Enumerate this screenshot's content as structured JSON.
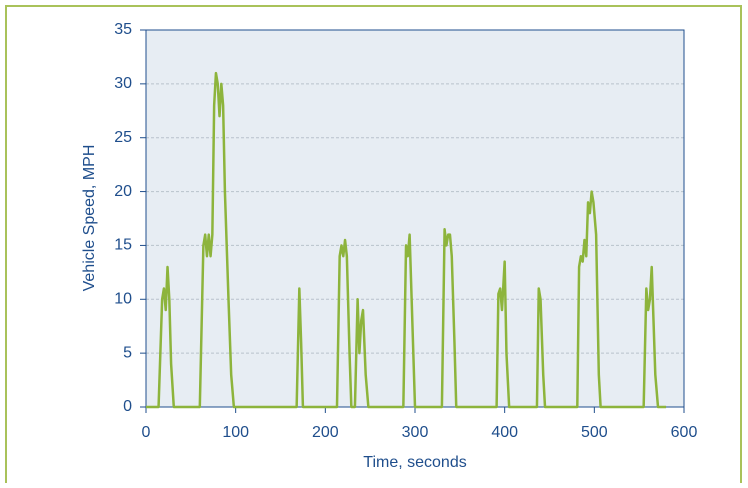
{
  "chart_data": {
    "type": "line",
    "xlabel": "Time, seconds",
    "ylabel": "Vehicle Speed, MPH",
    "x": [
      0,
      14,
      18,
      20,
      22,
      24,
      26,
      28,
      31,
      60,
      64,
      66,
      68,
      70,
      72,
      74,
      76,
      78,
      80,
      82,
      84,
      86,
      88,
      92,
      95,
      98,
      168,
      171,
      173,
      175,
      213,
      216,
      218,
      220,
      222,
      224,
      227,
      229,
      233,
      236,
      238,
      240,
      242,
      245,
      248,
      287,
      290,
      292,
      294,
      297,
      300,
      330,
      333,
      335,
      337,
      339,
      341,
      344,
      346,
      391,
      393,
      395,
      397,
      400,
      402,
      405,
      436,
      438,
      440,
      443,
      445,
      481,
      483,
      485,
      487,
      489,
      491,
      493,
      495,
      497,
      499,
      502,
      505,
      507,
      555,
      558,
      560,
      562,
      564,
      566,
      568,
      571,
      580
    ],
    "series": [
      {
        "name": "Vehicle Speed",
        "color": "#8db43c",
        "values": [
          0,
          0,
          10,
          11,
          9,
          13,
          10,
          4,
          0,
          0,
          15,
          16,
          14,
          16,
          14,
          16,
          28,
          31,
          30,
          27,
          30,
          28,
          20,
          10,
          3,
          0,
          0,
          11,
          6,
          0,
          0,
          14,
          15,
          14,
          15.5,
          14,
          5,
          0,
          0,
          10,
          5,
          8,
          9,
          3,
          0,
          0,
          15,
          14,
          16,
          8,
          0,
          0,
          16.5,
          15,
          16,
          16,
          14,
          6,
          0,
          0,
          10.5,
          11,
          9,
          13.5,
          5,
          0,
          0,
          11,
          10,
          3,
          0,
          0,
          13,
          14,
          13.5,
          15.5,
          14,
          19,
          18,
          20,
          19,
          16,
          3,
          0,
          0,
          11,
          9,
          10,
          13,
          8,
          3,
          0,
          0
        ]
      }
    ],
    "xlim": [
      0,
      600
    ],
    "xticks": [
      0,
      100,
      200,
      300,
      400,
      500,
      600
    ],
    "ylim": [
      0,
      35
    ],
    "yticks": [
      0,
      5,
      10,
      15,
      20,
      25,
      30,
      35
    ],
    "grid": true
  }
}
